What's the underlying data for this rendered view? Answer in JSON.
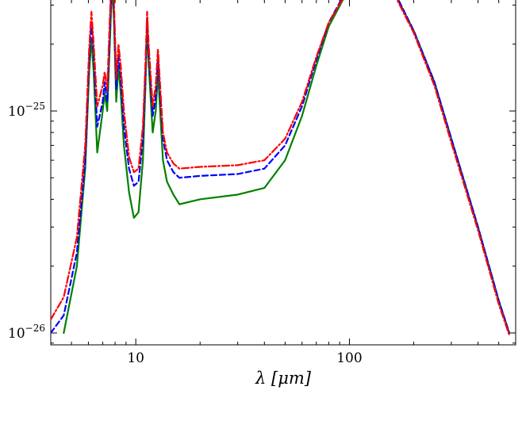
{
  "chart_data": {
    "type": "line",
    "xlabel": "λ [μm]",
    "ylabel": "",
    "x_scale": "log",
    "y_scale": "log",
    "xlim": [
      4,
      600
    ],
    "ylim": [
      1e-26,
      1e-24
    ],
    "x_ticks": [
      {
        "value": 10,
        "label": "10"
      },
      {
        "value": 100,
        "label": "100"
      }
    ],
    "y_ticks": [
      {
        "value": 1e-25,
        "base": "10",
        "exp": "−25"
      },
      {
        "value": 1e-26,
        "base": "10",
        "exp": "−26"
      }
    ],
    "grid": false,
    "legend": "none",
    "series": [
      {
        "color": "#008000",
        "dash": "solid",
        "points": [
          [
            4.6,
            1e-26
          ],
          [
            5.3,
            2e-26
          ],
          [
            5.8,
            5.5e-26
          ],
          [
            6.05,
            1.5e-25
          ],
          [
            6.2,
            2.1e-25
          ],
          [
            6.35,
            1.5e-25
          ],
          [
            6.6,
            6.5e-26
          ],
          [
            7.0,
            1e-25
          ],
          [
            7.15,
            1.2e-25
          ],
          [
            7.35,
            1e-25
          ],
          [
            7.6,
            2.3e-25
          ],
          [
            7.75,
            3.8e-25
          ],
          [
            7.9,
            2.6e-25
          ],
          [
            8.1,
            1.1e-25
          ],
          [
            8.3,
            1.6e-25
          ],
          [
            8.5,
            1.2e-25
          ],
          [
            8.8,
            7e-26
          ],
          [
            9.3,
            4.3e-26
          ],
          [
            9.8,
            3.3e-26
          ],
          [
            10.3,
            3.5e-26
          ],
          [
            10.8,
            6e-26
          ],
          [
            11.1,
            1.3e-25
          ],
          [
            11.3,
            2.45e-25
          ],
          [
            11.5,
            1.6e-25
          ],
          [
            12.0,
            8e-26
          ],
          [
            12.4,
            1e-25
          ],
          [
            12.7,
            1.5e-25
          ],
          [
            13.0,
            1e-25
          ],
          [
            13.4,
            6e-26
          ],
          [
            14.0,
            4.8e-26
          ],
          [
            15.0,
            4.2e-26
          ],
          [
            16.0,
            3.8e-26
          ],
          [
            20,
            4e-26
          ],
          [
            30,
            4.2e-26
          ],
          [
            40,
            4.5e-26
          ],
          [
            50,
            6e-26
          ],
          [
            60,
            9.5e-26
          ],
          [
            70,
            1.6e-25
          ],
          [
            80,
            2.4e-25
          ],
          [
            100,
            3.6e-25
          ],
          [
            120,
            4.3e-25
          ],
          [
            140,
            4.1e-25
          ],
          [
            160,
            3.5e-25
          ],
          [
            200,
            2.3e-25
          ],
          [
            250,
            1.35e-25
          ],
          [
            300,
            7.5e-26
          ],
          [
            400,
            3e-26
          ],
          [
            500,
            1.4e-26
          ],
          [
            560,
            1e-26
          ]
        ]
      },
      {
        "color": "#0000ff",
        "dash": "dashed",
        "points": [
          [
            4.0,
            1e-26
          ],
          [
            4.6,
            1.2e-26
          ],
          [
            5.3,
            2.3e-26
          ],
          [
            5.8,
            6e-26
          ],
          [
            6.05,
            1.7e-25
          ],
          [
            6.2,
            2.5e-25
          ],
          [
            6.35,
            1.8e-25
          ],
          [
            6.6,
            8.5e-26
          ],
          [
            7.0,
            1.1e-25
          ],
          [
            7.15,
            1.35e-25
          ],
          [
            7.35,
            1.1e-25
          ],
          [
            7.6,
            2.6e-25
          ],
          [
            7.75,
            4.2e-25
          ],
          [
            7.9,
            2.9e-25
          ],
          [
            8.1,
            1.25e-25
          ],
          [
            8.3,
            1.8e-25
          ],
          [
            8.5,
            1.4e-25
          ],
          [
            8.8,
            8.5e-26
          ],
          [
            9.3,
            5.5e-26
          ],
          [
            9.8,
            4.6e-26
          ],
          [
            10.3,
            4.8e-26
          ],
          [
            10.8,
            7.5e-26
          ],
          [
            11.1,
            1.5e-25
          ],
          [
            11.3,
            2.65e-25
          ],
          [
            11.5,
            1.8e-25
          ],
          [
            12.0,
            9.5e-26
          ],
          [
            12.4,
            1.15e-25
          ],
          [
            12.7,
            1.75e-25
          ],
          [
            13.0,
            1.2e-25
          ],
          [
            13.4,
            7.5e-26
          ],
          [
            14.0,
            6e-26
          ],
          [
            15.0,
            5.3e-26
          ],
          [
            16.0,
            5e-26
          ],
          [
            20,
            5.1e-26
          ],
          [
            30,
            5.2e-26
          ],
          [
            40,
            5.5e-26
          ],
          [
            50,
            7e-26
          ],
          [
            60,
            1.05e-25
          ],
          [
            70,
            1.7e-25
          ],
          [
            80,
            2.5e-25
          ],
          [
            100,
            3.7e-25
          ],
          [
            120,
            4.4e-25
          ],
          [
            140,
            4.2e-25
          ],
          [
            160,
            3.55e-25
          ],
          [
            200,
            2.3e-25
          ],
          [
            250,
            1.35e-25
          ],
          [
            300,
            7.5e-26
          ],
          [
            400,
            3e-26
          ],
          [
            500,
            1.4e-26
          ],
          [
            560,
            1e-26
          ]
        ]
      },
      {
        "color": "#ff0000",
        "dash": "dashdot",
        "points": [
          [
            4.0,
            1.15e-26
          ],
          [
            4.6,
            1.45e-26
          ],
          [
            5.3,
            2.7e-26
          ],
          [
            5.8,
            7e-26
          ],
          [
            6.05,
            1.9e-25
          ],
          [
            6.2,
            2.8e-25
          ],
          [
            6.35,
            2e-25
          ],
          [
            6.6,
            1.05e-25
          ],
          [
            7.0,
            1.3e-25
          ],
          [
            7.15,
            1.5e-25
          ],
          [
            7.35,
            1.25e-25
          ],
          [
            7.6,
            3e-25
          ],
          [
            7.75,
            4.6e-25
          ],
          [
            7.9,
            3.2e-25
          ],
          [
            8.1,
            1.4e-25
          ],
          [
            8.3,
            2e-25
          ],
          [
            8.5,
            1.6e-25
          ],
          [
            8.8,
            1e-25
          ],
          [
            9.3,
            6.2e-26
          ],
          [
            9.8,
            5.3e-26
          ],
          [
            10.3,
            5.5e-26
          ],
          [
            10.8,
            8.5e-26
          ],
          [
            11.1,
            1.65e-25
          ],
          [
            11.3,
            2.8e-25
          ],
          [
            11.5,
            1.95e-25
          ],
          [
            12.0,
            1.05e-25
          ],
          [
            12.4,
            1.3e-25
          ],
          [
            12.7,
            1.9e-25
          ],
          [
            13.0,
            1.3e-25
          ],
          [
            13.4,
            8e-26
          ],
          [
            14.0,
            6.5e-26
          ],
          [
            15.0,
            5.8e-26
          ],
          [
            16.0,
            5.5e-26
          ],
          [
            20,
            5.6e-26
          ],
          [
            30,
            5.7e-26
          ],
          [
            40,
            6e-26
          ],
          [
            50,
            7.5e-26
          ],
          [
            60,
            1.1e-25
          ],
          [
            70,
            1.75e-25
          ],
          [
            80,
            2.5e-25
          ],
          [
            100,
            3.6e-25
          ],
          [
            120,
            4.25e-25
          ],
          [
            140,
            4.05e-25
          ],
          [
            160,
            3.45e-25
          ],
          [
            200,
            2.25e-25
          ],
          [
            250,
            1.3e-25
          ],
          [
            300,
            7.2e-26
          ],
          [
            400,
            2.9e-26
          ],
          [
            500,
            1.35e-26
          ],
          [
            560,
            9.8e-27
          ]
        ]
      }
    ]
  }
}
